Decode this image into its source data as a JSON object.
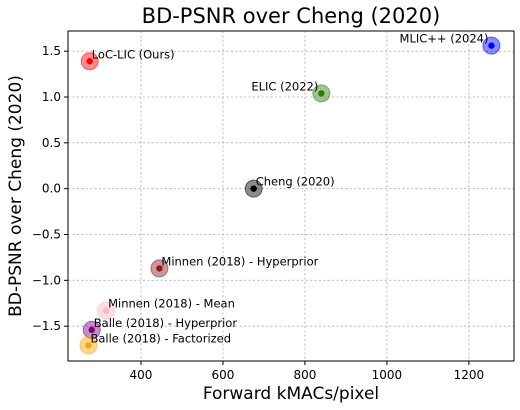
{
  "chart_data": {
    "type": "scatter",
    "title": "BD-PSNR over Cheng (2020)",
    "xlabel": "Forward kMACs/pixel",
    "ylabel": "BD-PSNR over Cheng (2020)",
    "xlim": [
      222,
      1310
    ],
    "ylim": [
      -1.88,
      1.72
    ],
    "xticks": [
      400,
      600,
      800,
      1000,
      1200
    ],
    "yticks": [
      -1.5,
      -1.0,
      -0.5,
      0.0,
      0.5,
      1.0,
      1.5
    ],
    "xtick_labels": [
      "400",
      "600",
      "800",
      "1000",
      "1200"
    ],
    "ytick_labels": [
      "−1.5",
      "−1.0",
      "−0.5",
      "0.0",
      "0.5",
      "1.0",
      "1.5"
    ],
    "grid": true,
    "points": [
      {
        "label": "LoC-LIC (Ours)",
        "x": 275,
        "y": 1.39,
        "color": "#ff0000",
        "label_side": "right"
      },
      {
        "label": "MLIC++ (2024)",
        "x": 1255,
        "y": 1.56,
        "color": "#0000ff",
        "label_side": "left"
      },
      {
        "label": "ELIC (2022)",
        "x": 840,
        "y": 1.04,
        "color": "#2e7d0a",
        "label_side": "left"
      },
      {
        "label": "Cheng (2020)",
        "x": 675,
        "y": 0.0,
        "color": "#000000",
        "label_side": "right"
      },
      {
        "label": "Minnen (2018) - Hyperprior",
        "x": 445,
        "y": -0.87,
        "color": "#8b1a1a",
        "label_side": "right"
      },
      {
        "label": "Minnen (2018) - Mean",
        "x": 315,
        "y": -1.33,
        "color": "#ffb6c1",
        "label_side": "right"
      },
      {
        "label": "Balle (2018) - Hyperprior",
        "x": 280,
        "y": -1.54,
        "color": "#800080",
        "label_side": "right"
      },
      {
        "label": "Balle (2018) - Factorized",
        "x": 272,
        "y": -1.71,
        "color": "#ffa500",
        "label_side": "right"
      }
    ]
  }
}
